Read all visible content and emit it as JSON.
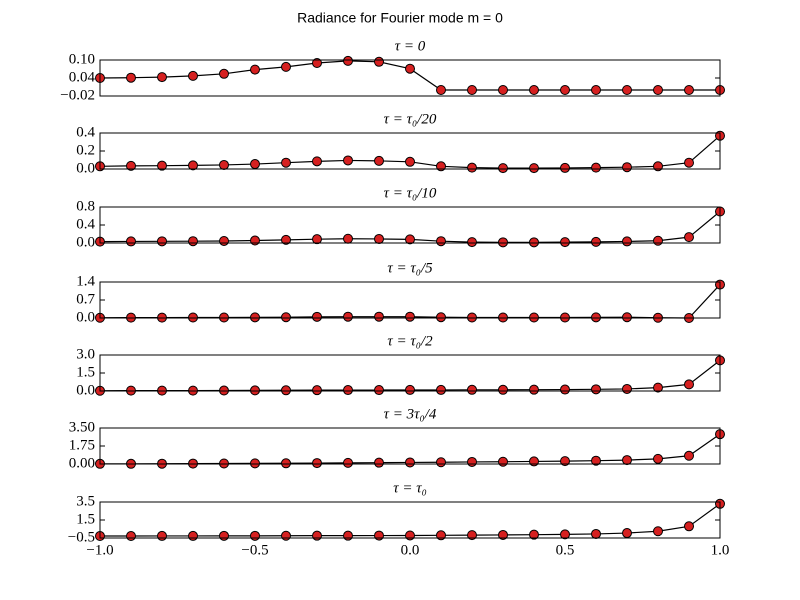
{
  "title": "Radiance for Fourier mode m = 0",
  "chart_data": [
    {
      "type": "line",
      "title": "τ = 0",
      "xlim": [
        -1,
        1
      ],
      "ylim": [
        -0.02,
        0.1
      ],
      "yticks": [
        {
          "value": 0.1,
          "label": "0.10"
        },
        0.04,
        {
          "value": -0.02,
          "label": "−0.02"
        }
      ],
      "x": [
        -1,
        -0.9,
        -0.8,
        -0.7,
        -0.6,
        -0.5,
        -0.4,
        -0.3,
        -0.2,
        -0.1,
        0,
        0.1,
        0.2,
        0.3,
        0.4,
        0.5,
        0.6,
        0.7,
        0.8,
        0.9,
        1
      ],
      "series": [
        {
          "line_color": "#000000",
          "marker_color": "#d62020",
          "values": [
            0.04,
            0.041,
            0.043,
            0.047,
            0.054,
            0.068,
            0.077,
            0.09,
            0.097,
            0.094,
            0.071,
            0.0,
            0.0,
            0.0,
            0.0,
            0.0,
            0.0,
            0.0,
            0.0,
            0.0,
            0.0
          ]
        }
      ]
    },
    {
      "type": "line",
      "title": "τ = τ₀/20",
      "xlim": [
        -1,
        1
      ],
      "ylim": [
        0,
        0.4
      ],
      "yticks": [
        {
          "value": 0,
          "label": "0.0"
        },
        0.2,
        0.4
      ],
      "x": [
        -1,
        -0.9,
        -0.8,
        -0.7,
        -0.6,
        -0.5,
        -0.4,
        -0.3,
        -0.2,
        -0.1,
        0,
        0.1,
        0.2,
        0.3,
        0.4,
        0.5,
        0.6,
        0.7,
        0.8,
        0.9,
        1
      ],
      "series": [
        {
          "line_color": "#000000",
          "marker_color": "#d62020",
          "values": [
            0.03,
            0.035,
            0.037,
            0.04,
            0.045,
            0.055,
            0.07,
            0.085,
            0.095,
            0.09,
            0.08,
            0.03,
            0.015,
            0.01,
            0.01,
            0.012,
            0.015,
            0.02,
            0.03,
            0.07,
            0.37
          ]
        }
      ]
    },
    {
      "type": "line",
      "title": "τ = τ₀/10",
      "xlim": [
        -1,
        1
      ],
      "ylim": [
        0,
        0.8
      ],
      "yticks": [
        {
          "value": 0,
          "label": "0.0"
        },
        0.4,
        0.8
      ],
      "x": [
        -1,
        -0.9,
        -0.8,
        -0.7,
        -0.6,
        -0.5,
        -0.4,
        -0.3,
        -0.2,
        -0.1,
        0,
        0.1,
        0.2,
        0.3,
        0.4,
        0.5,
        0.6,
        0.7,
        0.8,
        0.9,
        1
      ],
      "series": [
        {
          "line_color": "#000000",
          "marker_color": "#d62020",
          "values": [
            0.03,
            0.035,
            0.037,
            0.04,
            0.045,
            0.055,
            0.07,
            0.085,
            0.095,
            0.09,
            0.08,
            0.04,
            0.02,
            0.015,
            0.015,
            0.02,
            0.025,
            0.035,
            0.05,
            0.13,
            0.7
          ]
        }
      ]
    },
    {
      "type": "line",
      "title": "τ = τ₀/5",
      "xlim": [
        -1,
        1
      ],
      "ylim": [
        0,
        1.4
      ],
      "yticks": [
        {
          "value": 0,
          "label": "0.0"
        },
        0.7,
        1.4
      ],
      "x": [
        -1,
        -0.9,
        -0.8,
        -0.7,
        -0.6,
        -0.5,
        -0.4,
        -0.3,
        -0.2,
        -0.1,
        0,
        0.1,
        0.2,
        0.3,
        0.4,
        0.5,
        0.6,
        0.7,
        0.8,
        0.9,
        1
      ],
      "series": [
        {
          "line_color": "#000000",
          "marker_color": "#d62020",
          "values": [
            0.01,
            0.015,
            0.015,
            0.02,
            0.02,
            0.025,
            0.03,
            0.045,
            0.05,
            0.05,
            0.05,
            0.03,
            0.02,
            0.02,
            0.02,
            0.02,
            0.025,
            0.03,
            0.01,
            0.0,
            1.3
          ]
        }
      ]
    },
    {
      "type": "line",
      "title": "τ = τ₀/2",
      "xlim": [
        -1,
        1
      ],
      "ylim": [
        0,
        3
      ],
      "yticks": [
        {
          "value": 0,
          "label": "0.0"
        },
        1.5,
        {
          "value": 3,
          "label": "3.0"
        }
      ],
      "x": [
        -1,
        -0.9,
        -0.8,
        -0.7,
        -0.6,
        -0.5,
        -0.4,
        -0.3,
        -0.2,
        -0.1,
        0,
        0.1,
        0.2,
        0.3,
        0.4,
        0.5,
        0.6,
        0.7,
        0.8,
        0.9,
        1
      ],
      "series": [
        {
          "line_color": "#000000",
          "marker_color": "#d62020",
          "values": [
            0.02,
            0.03,
            0.03,
            0.03,
            0.04,
            0.05,
            0.06,
            0.07,
            0.08,
            0.08,
            0.09,
            0.09,
            0.1,
            0.1,
            0.11,
            0.12,
            0.14,
            0.17,
            0.28,
            0.55,
            2.55
          ]
        }
      ]
    },
    {
      "type": "line",
      "title": "τ = 3τ₀/4",
      "xlim": [
        -1,
        1
      ],
      "ylim": [
        0,
        3.5
      ],
      "yticks": [
        {
          "value": 0,
          "label": "0.00"
        },
        1.75,
        {
          "value": 3.5,
          "label": "3.50"
        }
      ],
      "x": [
        -1,
        -0.9,
        -0.8,
        -0.7,
        -0.6,
        -0.5,
        -0.4,
        -0.3,
        -0.2,
        -0.1,
        0,
        0.1,
        0.2,
        0.3,
        0.4,
        0.5,
        0.6,
        0.7,
        0.8,
        0.9,
        1
      ],
      "series": [
        {
          "line_color": "#000000",
          "marker_color": "#d62020",
          "values": [
            0.02,
            0.02,
            0.03,
            0.04,
            0.05,
            0.06,
            0.07,
            0.09,
            0.11,
            0.13,
            0.15,
            0.17,
            0.2,
            0.22,
            0.25,
            0.28,
            0.32,
            0.38,
            0.5,
            0.8,
            2.9
          ]
        }
      ]
    },
    {
      "type": "line",
      "title": "τ = τ₀",
      "xlim": [
        -1,
        1
      ],
      "ylim": [
        -0.5,
        3.5
      ],
      "yticks": [
        {
          "value": -0.5,
          "label": "−0.5"
        },
        1.5,
        3.5
      ],
      "xticks": [
        {
          "value": -1,
          "label": "−1.0"
        },
        {
          "value": -0.5,
          "label": "−0.5"
        },
        {
          "value": 0,
          "label": "0.0"
        },
        0.5,
        {
          "value": 1,
          "label": "1.0"
        }
      ],
      "x": [
        -1,
        -0.9,
        -0.8,
        -0.7,
        -0.6,
        -0.5,
        -0.4,
        -0.3,
        -0.2,
        -0.1,
        0,
        0.1,
        0.2,
        0.3,
        0.4,
        0.5,
        0.6,
        0.7,
        0.8,
        0.9,
        1
      ],
      "series": [
        {
          "line_color": "#000000",
          "marker_color": "#d62020",
          "values": [
            -0.28,
            -0.28,
            -0.27,
            -0.27,
            -0.26,
            -0.26,
            -0.25,
            -0.24,
            -0.24,
            -0.23,
            -0.22,
            -0.2,
            -0.18,
            -0.16,
            -0.13,
            -0.1,
            -0.05,
            0.05,
            0.25,
            0.8,
            3.3
          ]
        }
      ]
    }
  ]
}
